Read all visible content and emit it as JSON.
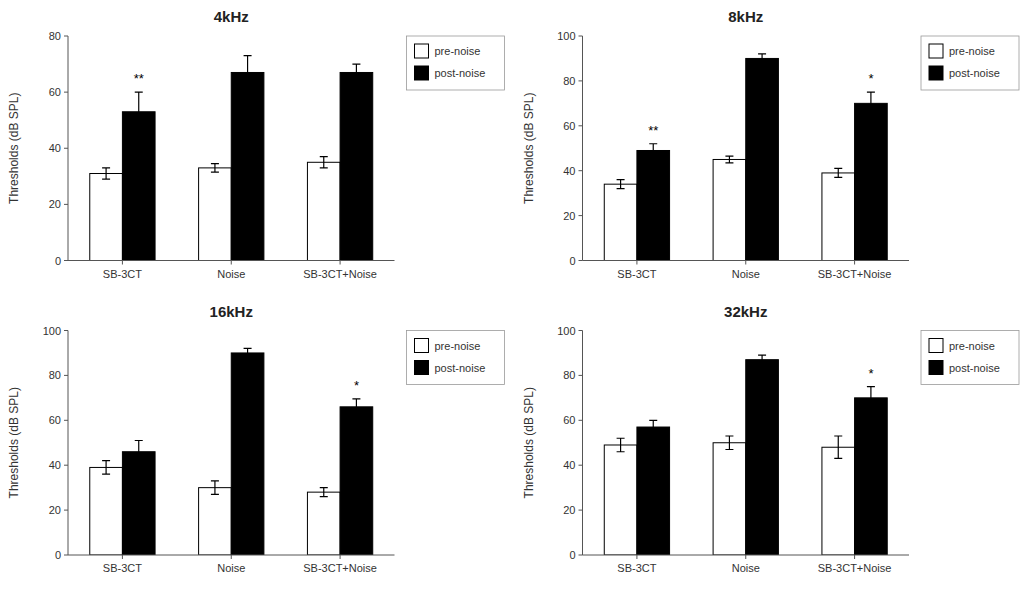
{
  "chart_data": [
    {
      "type": "bar",
      "title": "4kHz",
      "y_label": "Thresholds (dB SPL)",
      "categories": [
        "SB-3CT",
        "Noise",
        "SB-3CT+Noise"
      ],
      "series": [
        {
          "name": "pre-noise",
          "color": "white",
          "values": [
            31,
            33,
            35
          ],
          "errors": [
            2,
            1.5,
            2
          ]
        },
        {
          "name": "post-noise",
          "color": "black",
          "values": [
            53,
            67,
            67
          ],
          "errors": [
            7,
            6,
            3
          ]
        }
      ],
      "annotations": [
        {
          "text": "**",
          "category": "SB-3CT",
          "series": "post-noise"
        }
      ],
      "ylim": [
        0,
        80
      ],
      "yticks": [
        0,
        20,
        40,
        60,
        80
      ],
      "grid": false,
      "legend": "right"
    },
    {
      "type": "bar",
      "title": "8kHz",
      "y_label": "Thresholds (dB SPL)",
      "categories": [
        "SB-3CT",
        "Noise",
        "SB-3CT+Noise"
      ],
      "series": [
        {
          "name": "pre-noise",
          "color": "white",
          "values": [
            34,
            45,
            39
          ],
          "errors": [
            2,
            1.5,
            2
          ]
        },
        {
          "name": "post-noise",
          "color": "black",
          "values": [
            49,
            90,
            70
          ],
          "errors": [
            3,
            2,
            5
          ]
        }
      ],
      "annotations": [
        {
          "text": "**",
          "category": "SB-3CT",
          "series": "post-noise"
        },
        {
          "text": "*",
          "category": "SB-3CT+Noise",
          "series": "post-noise"
        }
      ],
      "ylim": [
        0,
        100
      ],
      "yticks": [
        0,
        20,
        40,
        60,
        80,
        100
      ],
      "grid": false,
      "legend": "right"
    },
    {
      "type": "bar",
      "title": "16kHz",
      "y_label": "Thresholds (dB SPL)",
      "categories": [
        "SB-3CT",
        "Noise",
        "SB-3CT+Noise"
      ],
      "series": [
        {
          "name": "pre-noise",
          "color": "white",
          "values": [
            39,
            30,
            28
          ],
          "errors": [
            3,
            3,
            2
          ]
        },
        {
          "name": "post-noise",
          "color": "black",
          "values": [
            46,
            90,
            66
          ],
          "errors": [
            5,
            2,
            3.5
          ]
        }
      ],
      "annotations": [
        {
          "text": "*",
          "category": "SB-3CT+Noise",
          "series": "post-noise"
        }
      ],
      "ylim": [
        0,
        100
      ],
      "yticks": [
        0,
        20,
        40,
        60,
        80,
        100
      ],
      "grid": false,
      "legend": "right"
    },
    {
      "type": "bar",
      "title": "32kHz",
      "y_label": "Thresholds (dB SPL)",
      "categories": [
        "SB-3CT",
        "Noise",
        "SB-3CT+Noise"
      ],
      "series": [
        {
          "name": "pre-noise",
          "color": "white",
          "values": [
            49,
            50,
            48
          ],
          "errors": [
            3,
            3,
            5
          ]
        },
        {
          "name": "post-noise",
          "color": "black",
          "values": [
            57,
            87,
            70
          ],
          "errors": [
            3,
            2,
            5
          ]
        }
      ],
      "annotations": [
        {
          "text": "*",
          "category": "SB-3CT+Noise",
          "series": "post-noise"
        }
      ],
      "ylim": [
        0,
        100
      ],
      "yticks": [
        0,
        20,
        40,
        60,
        80,
        100
      ],
      "grid": false,
      "legend": "right"
    }
  ]
}
